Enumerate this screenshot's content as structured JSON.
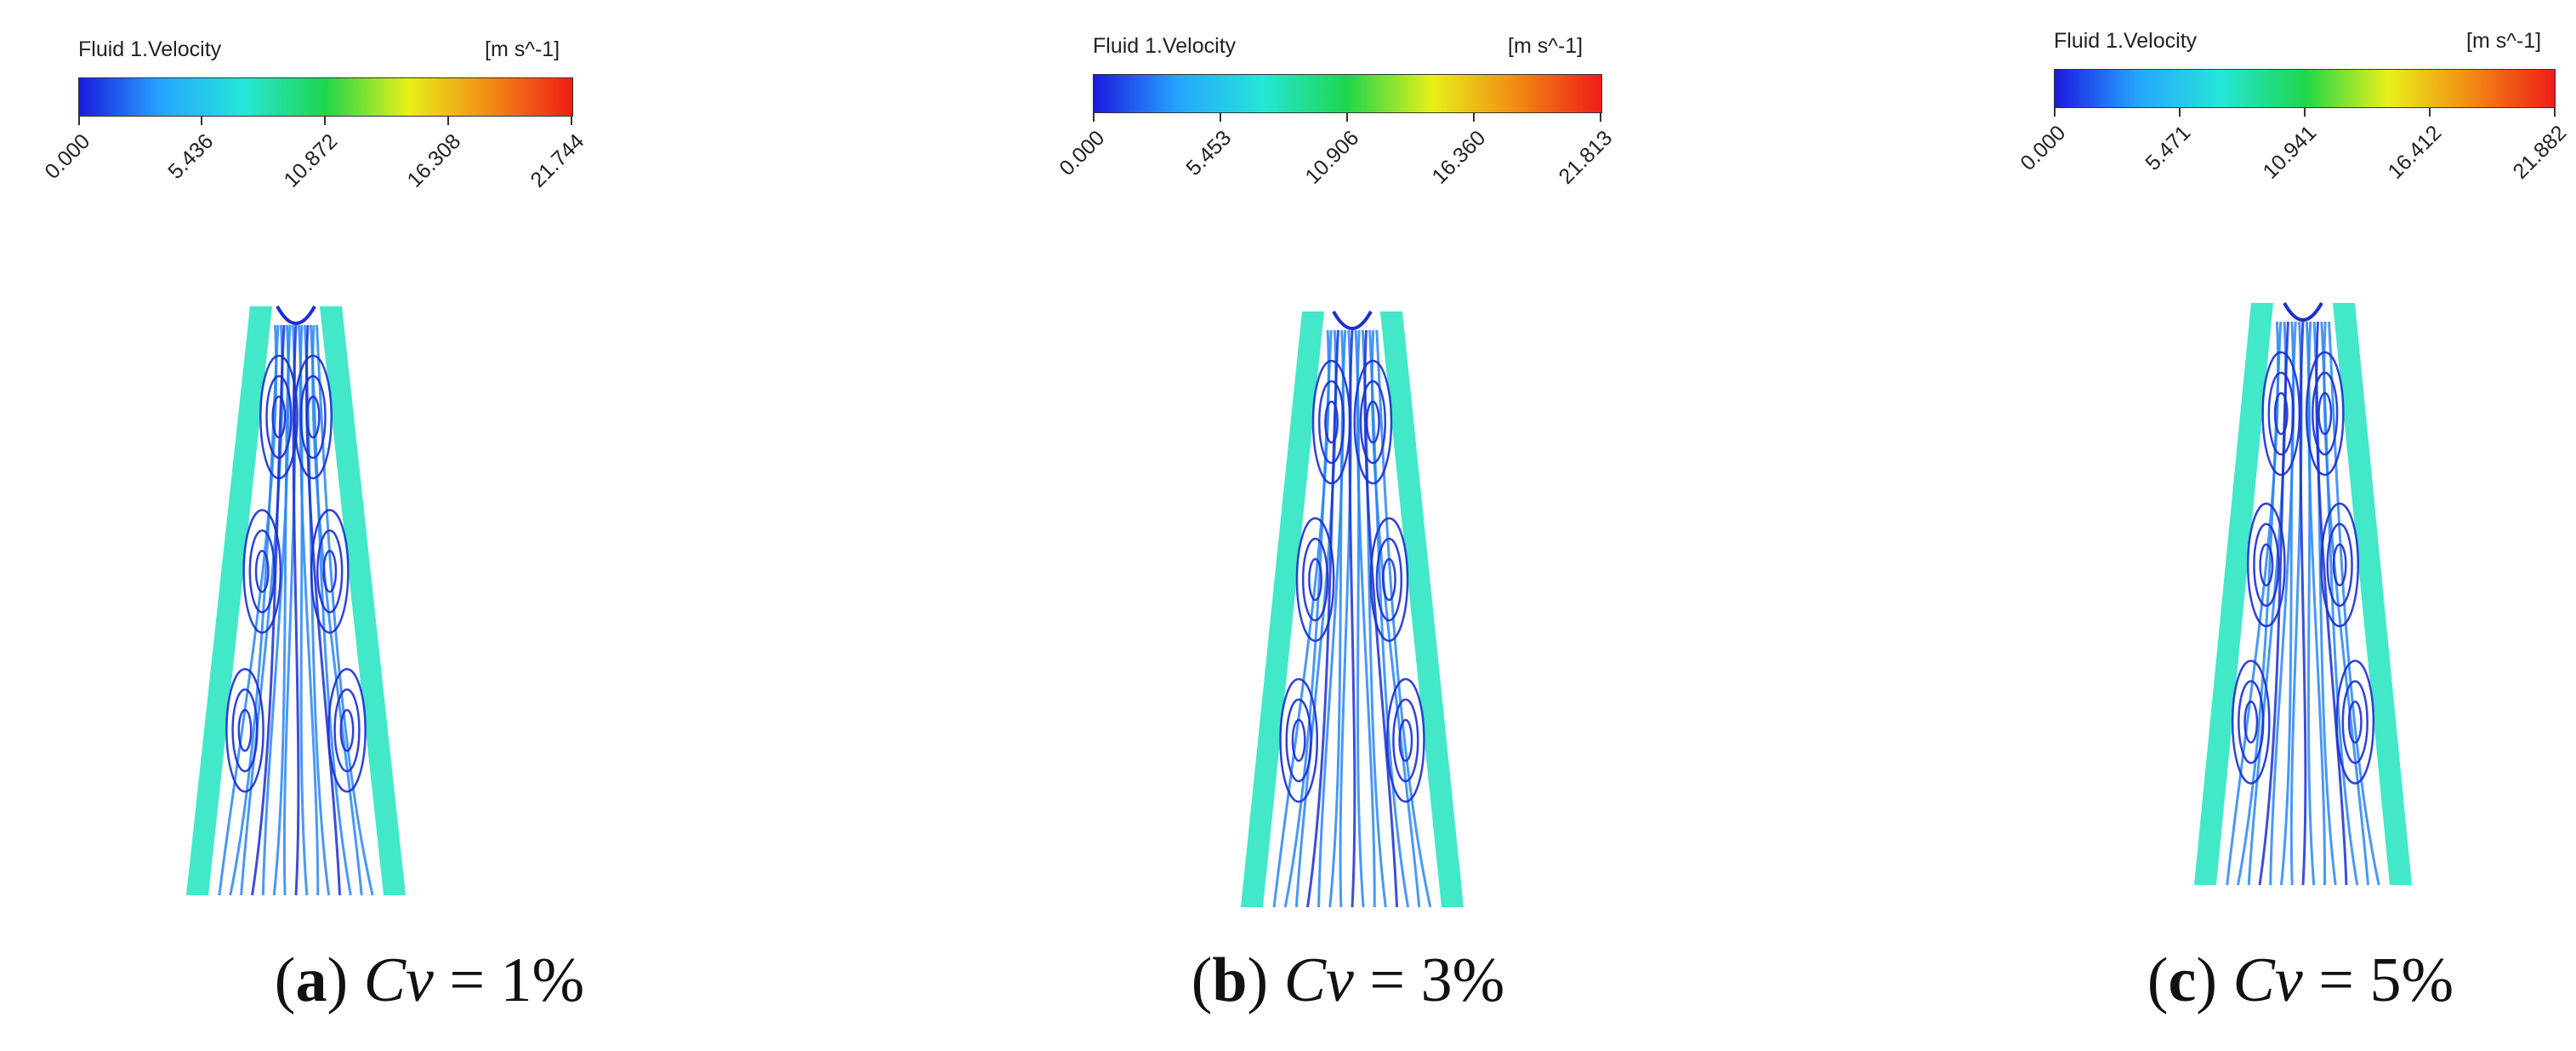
{
  "panels": [
    {
      "legend": {
        "title": "Fluid 1.Velocity",
        "units": "[m s^-1]",
        "ticks": [
          "0.000",
          "5.436",
          "10.872",
          "16.308",
          "21.744"
        ],
        "gradient": [
          "#1a1adf",
          "#27a5ff",
          "#25e6d8",
          "#1fd64b",
          "#e8ef1a",
          "#f28a14",
          "#ee1d17"
        ]
      },
      "caption": {
        "letter": "a",
        "variable": "Cv",
        "equals": " = ",
        "value": "1%"
      },
      "field_colors": {
        "wall": "#2ee6c2",
        "core": "#2a86f0",
        "vortex": "#1a2fd0"
      }
    },
    {
      "legend": {
        "title": "Fluid 1.Velocity",
        "units": "[m s^-1]",
        "ticks": [
          "0.000",
          "5.453",
          "10.906",
          "16.360",
          "21.813"
        ],
        "gradient": [
          "#1a1adf",
          "#27a5ff",
          "#25e6d8",
          "#1fd64b",
          "#e8ef1a",
          "#f28a14",
          "#ee1d17"
        ]
      },
      "caption": {
        "letter": "b",
        "variable": "Cv",
        "equals": " = ",
        "value": "3%"
      },
      "field_colors": {
        "wall": "#2ee6c2",
        "core": "#2a86f0",
        "vortex": "#1a2fd0"
      }
    },
    {
      "legend": {
        "title": "Fluid 1.Velocity",
        "units": "[m s^-1]",
        "ticks": [
          "0.000",
          "5.471",
          "10.941",
          "16.412",
          "21.882"
        ],
        "gradient": [
          "#1a1adf",
          "#27a5ff",
          "#25e6d8",
          "#1fd64b",
          "#e8ef1a",
          "#f28a14",
          "#ee1d17"
        ]
      },
      "caption": {
        "letter": "c",
        "variable": "Cv",
        "equals": " = ",
        "value": "5%"
      },
      "field_colors": {
        "wall": "#2ee6c2",
        "core": "#2a86f0",
        "vortex": "#1a2fd0"
      }
    }
  ]
}
